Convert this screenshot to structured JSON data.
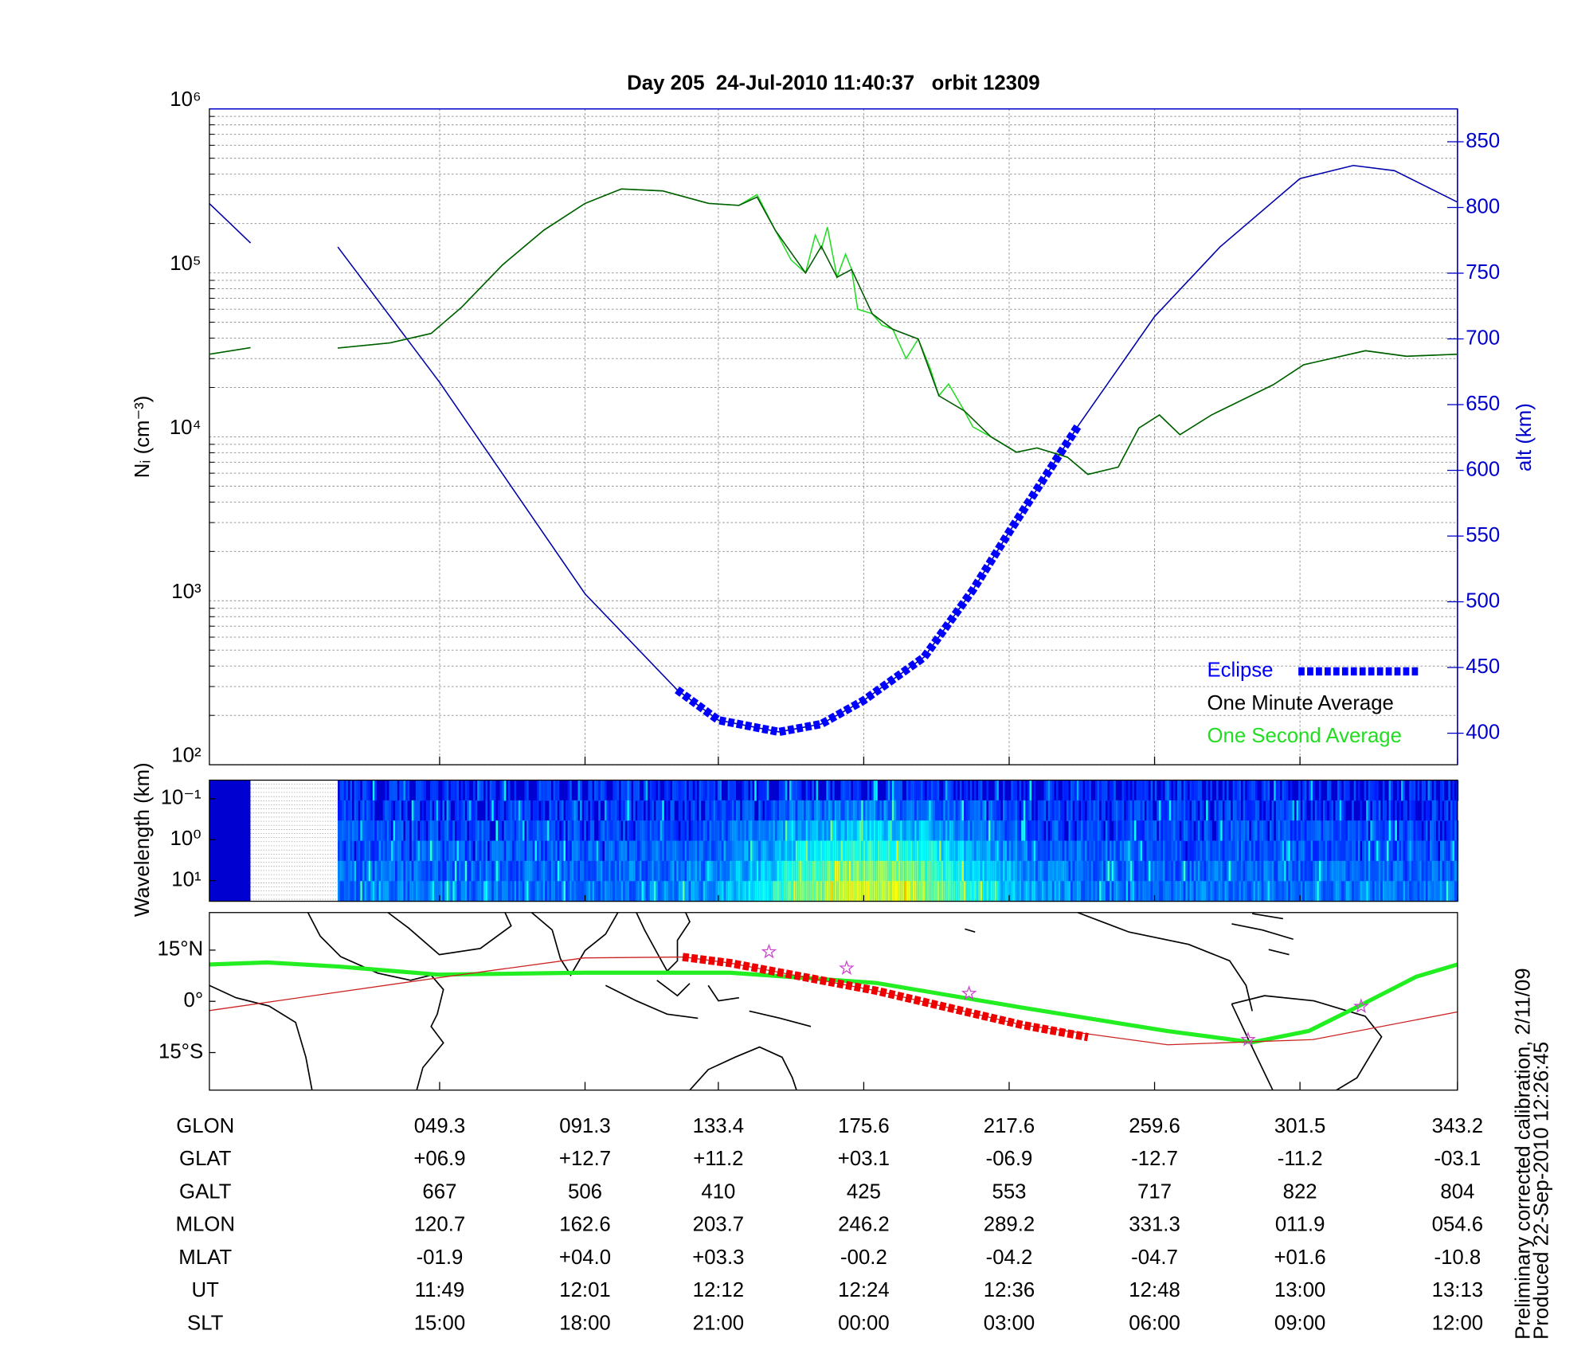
{
  "chart_data": [
    {
      "type": "line",
      "title": "Day 205  24-Jul-2010 11:40:37   orbit 12309",
      "ylabel": "Nᵢ (cm⁻³)",
      "y2label": "alt (km)",
      "log_y": true,
      "ylim": [
        100,
        1000000
      ],
      "yticks": [
        {
          "value": 100,
          "label": "10²"
        },
        {
          "value": 1000,
          "label": "10³"
        },
        {
          "value": 10000,
          "label": "10⁴"
        },
        {
          "value": 100000,
          "label": "10⁵"
        },
        {
          "value": 1000000,
          "label": "10⁶"
        }
      ],
      "y2lim": [
        376,
        875
      ],
      "y2ticks": [
        400,
        450,
        500,
        550,
        600,
        650,
        700,
        750,
        800,
        850
      ],
      "y2color": "#0000cc",
      "xlim": [
        690,
        793
      ],
      "xticks": [
        709,
        721,
        732,
        744,
        756,
        768,
        780,
        793
      ],
      "grid": true,
      "legend": "lower right",
      "series": [
        {
          "name": "Eclipse",
          "color": "#0000ff",
          "style": "thick-dashed",
          "axis": "y2",
          "x": [
            728.6,
            732,
            737,
            740.5,
            744,
            749,
            753,
            756,
            761.7
          ],
          "values": [
            433,
            410,
            401,
            407,
            425,
            458,
            509,
            553,
            634
          ]
        },
        {
          "name": "One Minute Average",
          "color": "#005a00",
          "legend_color": "#000000",
          "x": [
            690,
            693.4,
            697,
            700.6,
            704.9,
            708.3,
            710.8,
            714.2,
            717.6,
            721,
            724,
            727.4,
            731.2,
            733.7,
            735.2,
            736.7,
            739.2,
            740.5,
            741.8,
            743,
            744.7,
            746.4,
            748.5,
            750.2,
            752.3,
            754.5,
            756.6,
            758.3,
            760.8,
            762.5,
            765,
            766.7,
            768.4,
            770.1,
            772.7,
            777.8,
            780.3,
            785.4,
            788.8,
            793
          ],
          "values": [
            31900,
            35000,
            null,
            34800,
            37400,
            42700,
            61600,
            112000,
            182000,
            265000,
            325000,
            316000,
            265000,
            258000,
            290000,
            182000,
            100000,
            145000,
            94000,
            105000,
            56300,
            45300,
            39500,
            17800,
            14400,
            10000,
            8060,
            8560,
            7520,
            5900,
            6540,
            11300,
            13600,
            10300,
            13600,
            20800,
            27500,
            33500,
            31000,
            31900
          ]
        },
        {
          "name": "One Second Average",
          "color": "#22dd22",
          "x": [
            690,
            693.4,
            697,
            700.6,
            704.9,
            708.3,
            710.8,
            714.2,
            717.6,
            721,
            724,
            727.4,
            731.2,
            733.7,
            735.2,
            736.7,
            738,
            739.2,
            740,
            740.5,
            741,
            741.8,
            742.5,
            743,
            743.5,
            744.7,
            745.5,
            746.4,
            747.5,
            748.5,
            749.5,
            750.2,
            751,
            752.3,
            753,
            754.5,
            756.6,
            758.3,
            760.8,
            762.5,
            765,
            766.7,
            768.4,
            770.1,
            772.7,
            777.8,
            780.3,
            785.4,
            788.8,
            793
          ],
          "values": [
            31900,
            35000,
            null,
            34800,
            37400,
            42700,
            61600,
            112000,
            182000,
            265000,
            325000,
            316000,
            265000,
            258000,
            300000,
            182000,
            120000,
            100000,
            170000,
            140000,
            190000,
            94000,
            130000,
            105000,
            60000,
            56300,
            48000,
            45300,
            30000,
            39500,
            26000,
            17800,
            21000,
            14400,
            11500,
            10000,
            8060,
            8560,
            7520,
            5900,
            6540,
            11300,
            13600,
            10300,
            13600,
            20800,
            27500,
            33500,
            31000,
            31900
          ]
        },
        {
          "color": "#0000aa",
          "axis": "y2",
          "x": [
            690,
            693.4,
            697,
            700.6,
            709,
            721,
            728.6,
            732,
            737,
            740.5,
            744,
            749,
            753,
            756,
            761.7,
            768,
            773.4,
            780,
            784.4,
            787.8,
            793
          ],
          "values": [
            803,
            773,
            null,
            770,
            667,
            506,
            433,
            410,
            401,
            407,
            425,
            458,
            509,
            553,
            634,
            717,
            770,
            822,
            832,
            828,
            804
          ]
        }
      ]
    },
    {
      "type": "heatmap",
      "ylabel": "Wavelength (km)",
      "log_y": true,
      "ylim": [
        0.035,
        32
      ],
      "yticks": [
        {
          "value": 0.1,
          "label": "10⁻¹"
        },
        {
          "value": 1,
          "label": "10⁰"
        },
        {
          "value": 10,
          "label": "10¹"
        }
      ]
    },
    {
      "type": "map",
      "xlim": [
        -16.8,
        343.2
      ],
      "ylim": [
        -26,
        26
      ],
      "yticks": [
        {
          "value": 15,
          "label": "15°N"
        },
        {
          "value": 0,
          "label": "0°"
        },
        {
          "value": -15,
          "label": "15°S"
        }
      ],
      "series": [
        {
          "color": "#22ee22",
          "style": "thick",
          "x": [
            -16.8,
            -0.2,
            20.5,
            49.2,
            91.3,
            133.3,
            175.3,
            217.4,
            259.4,
            284.0,
            300.3,
            315.1,
            331.3,
            343.2
          ],
          "values": [
            10.8,
            11.4,
            10.2,
            7.8,
            8.4,
            8.4,
            5.4,
            -1.8,
            -8.7,
            -12,
            -8.7,
            -1.2,
            7.2,
            10.8
          ]
        },
        {
          "color": "#cc2222",
          "style": "thin",
          "x": [
            -16.8,
            49.3,
            91.3,
            120,
            133.4,
            175.6,
            217.6,
            259.6,
            301.5,
            343.2
          ],
          "values": [
            -2.7,
            6.9,
            12.7,
            13.0,
            11.2,
            3.1,
            -6.9,
            -12.7,
            -11.2,
            -3.1
          ]
        },
        {
          "color": "#ee0000",
          "style": "thick-dashed",
          "x": [
            119.7,
            133.4,
            175.6,
            217.6,
            236.6
          ],
          "values": [
            13,
            11.2,
            3.1,
            -6.9,
            -10.5
          ]
        },
        {
          "color": "#cc44cc",
          "style": "star",
          "x": [
            144.6,
            167.0,
            202.3,
            282.8,
            315.4
          ],
          "values": [
            14.5,
            9.7,
            2.3,
            -11.2,
            -1.5
          ]
        }
      ]
    }
  ],
  "table": {
    "rows": [
      {
        "label": "GLON",
        "cells": [
          "049.3",
          "091.3",
          "133.4",
          "175.6",
          "217.6",
          "259.6",
          "301.5",
          "343.2"
        ]
      },
      {
        "label": "GLAT",
        "cells": [
          "+06.9",
          "+12.7",
          "+11.2",
          "+03.1",
          "-06.9",
          "-12.7",
          "-11.2",
          "-03.1"
        ]
      },
      {
        "label": "GALT",
        "cells": [
          "667",
          "506",
          "410",
          "425",
          "553",
          "717",
          "822",
          "804"
        ]
      },
      {
        "label": "MLON",
        "cells": [
          "120.7",
          "162.6",
          "203.7",
          "246.2",
          "289.2",
          "331.3",
          "011.9",
          "054.6"
        ]
      },
      {
        "label": "MLAT",
        "cells": [
          "-01.9",
          "+04.0",
          "+03.3",
          "-00.2",
          "-04.2",
          "-04.7",
          "+01.6",
          "-10.8"
        ]
      },
      {
        "label": "UT",
        "cells": [
          "11:49",
          "12:01",
          "12:12",
          "12:24",
          "12:36",
          "12:48",
          "13:00",
          "13:13"
        ]
      },
      {
        "label": "SLT",
        "cells": [
          "15:00",
          "18:00",
          "21:00",
          "00:00",
          "03:00",
          "06:00",
          "09:00",
          "12:00"
        ]
      }
    ]
  },
  "notes": [
    "Preliminary corrected calibration, 2/11/09",
    "Produced 22-Sep-2010 12:26:45"
  ]
}
